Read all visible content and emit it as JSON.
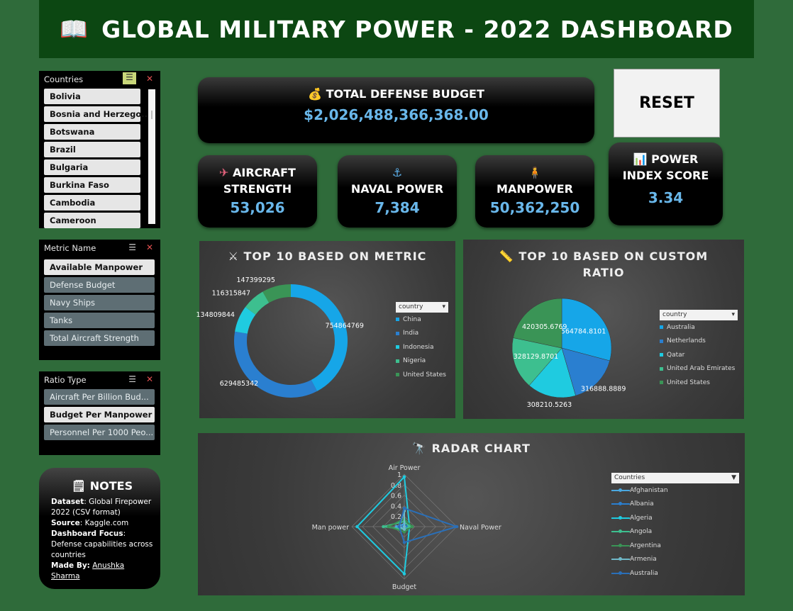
{
  "header": {
    "icon": "book-icon",
    "title": "GLOBAL MILITARY POWER - 2022 DASHBOARD"
  },
  "slicers": {
    "countries": {
      "title": "Countries",
      "items": [
        "Bolivia",
        "Bosnia and Herzego...",
        "Botswana",
        "Brazil",
        "Bulgaria",
        "Burkina Faso",
        "Cambodia",
        "Cameroon"
      ]
    },
    "metric": {
      "title": "Metric Name",
      "items": [
        "Available Manpower",
        "Defense Budget",
        "Navy Ships",
        "Tanks",
        "Total Aircraft Strength"
      ],
      "selected": "Available Manpower"
    },
    "ratio": {
      "title": "Ratio Type",
      "items": [
        "Aircraft Per Billion Bud...",
        "Budget Per Manpower",
        "Personnel Per 1000 Peo..."
      ],
      "selected": "Budget Per Manpower"
    }
  },
  "kpis": {
    "budget": {
      "icon": "💰",
      "title": "TOTAL DEFENSE BUDGET",
      "value": "$2,026,488,366,368.00"
    },
    "aircraft": {
      "icon": "✈",
      "title1": "AIRCRAFT",
      "title2": "STRENGTH",
      "value": "53,026"
    },
    "naval": {
      "icon": "⚓",
      "title": "NAVAL POWER",
      "value": "7,384"
    },
    "manpower": {
      "icon": "🧍",
      "title": "MANPOWER",
      "value": "50,362,250"
    },
    "power": {
      "icon": "📊",
      "title1": "POWER",
      "title2": "INDEX SCORE",
      "value": "3.34"
    }
  },
  "reset": {
    "label": "RESET"
  },
  "charts": {
    "metric": {
      "icon": "⚔",
      "title": "TOP 10 BASED ON METRIC",
      "legend_title": "country"
    },
    "ratio": {
      "icon": "📏",
      "title1": "TOP 10 BASED ON CUSTOM",
      "title2": "RATIO",
      "legend_title": "country"
    },
    "radar": {
      "icon": "🔭",
      "title": "RADAR CHART",
      "legend_title": "Countries"
    }
  },
  "chart_data": [
    {
      "type": "pie",
      "variant": "doughnut",
      "title": "TOP 10 BASED ON METRIC",
      "legend_title": "country",
      "categories": [
        "China",
        "India",
        "Indonesia",
        "Nigeria",
        "United States"
      ],
      "values": [
        754864769,
        629485342,
        134809844,
        116315847,
        147399295
      ],
      "colors": [
        "#16a6e8",
        "#2a7fd0",
        "#1fcbe0",
        "#3dbf8f",
        "#3a9456"
      ]
    },
    {
      "type": "pie",
      "title": "TOP 10 BASED ON CUSTOM RATIO",
      "legend_title": "country",
      "categories": [
        "Australia",
        "Netherlands",
        "Qatar",
        "United Arab Emirates",
        "United States"
      ],
      "values": [
        564784.8101,
        316888.8889,
        308210.5263,
        328129.8701,
        420305.6769
      ],
      "colors": [
        "#16a6e8",
        "#2a7fd0",
        "#1fcbe0",
        "#3dbf8f",
        "#3a9456"
      ]
    },
    {
      "type": "radar",
      "title": "RADAR CHART",
      "axes": [
        "Air Power",
        "Naval Power",
        "Budget",
        "Man power"
      ],
      "rlim": [
        0,
        1
      ],
      "ticks": [
        "1",
        "0.8",
        "0.6",
        "0.4",
        "0.2",
        "0"
      ],
      "legend_title": "Countries",
      "series": [
        {
          "name": "Afghanistan",
          "values": [
            0.05,
            0.0,
            0.02,
            0.15
          ],
          "color": "#4aa8e0"
        },
        {
          "name": "Albania",
          "values": [
            0.02,
            0.05,
            0.01,
            0.02
          ],
          "color": "#2a7fd0"
        },
        {
          "name": "Algeria",
          "values": [
            0.95,
            0.1,
            0.9,
            0.9
          ],
          "color": "#1fcbe0"
        },
        {
          "name": "Angola",
          "values": [
            0.1,
            0.1,
            0.05,
            0.4
          ],
          "color": "#3dbf8f"
        },
        {
          "name": "Argentina",
          "values": [
            0.15,
            0.15,
            0.1,
            0.3
          ],
          "color": "#3a9456"
        },
        {
          "name": "Armenia",
          "values": [
            0.3,
            0.0,
            0.05,
            0.1
          ],
          "color": "#6fb8c8"
        },
        {
          "name": "Australia",
          "values": [
            0.35,
            1.0,
            0.3,
            0.1
          ],
          "color": "#2a6fb8"
        }
      ]
    }
  ],
  "notes": {
    "title": "NOTES",
    "dataset_label": "Dataset",
    "dataset_value": ": Global Firepower 2022 (CSV format)",
    "source_label": "Source",
    "source_value": ": Kaggle.com",
    "focus_label": "Dashboard Focus",
    "focus_value": ": Defense capabilities across countries",
    "made_label": "Made By:",
    "made_value": "Anushka Sharma"
  }
}
